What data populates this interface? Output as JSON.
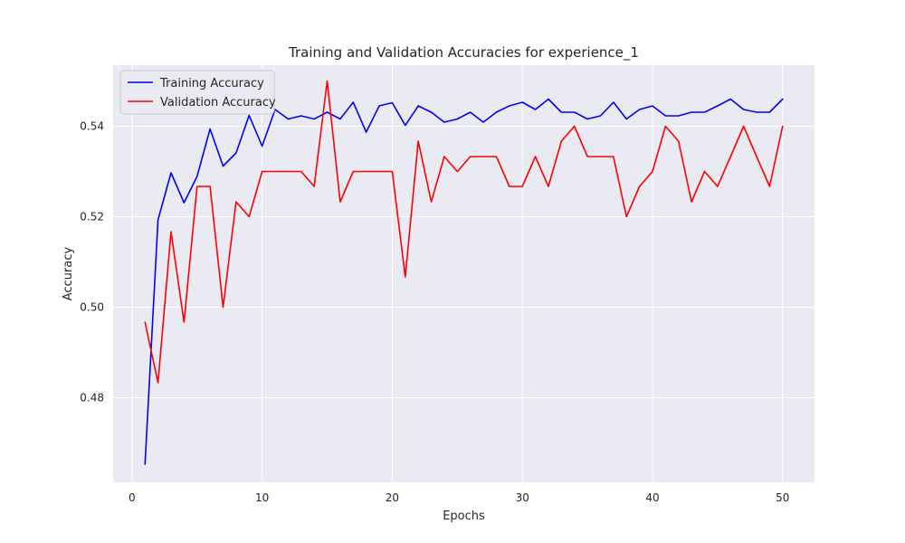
{
  "chart_data": {
    "type": "line",
    "title": "Training and Validation Accuracies for experience_1",
    "xlabel": "Epochs",
    "ylabel": "Accuracy",
    "xlim": [
      -1.45,
      52.45
    ],
    "ylim": [
      0.4613,
      0.5535
    ],
    "xticks": [
      0,
      10,
      20,
      30,
      40,
      50
    ],
    "yticks": [
      0.48,
      0.5,
      0.52,
      0.54
    ],
    "ytick_labels": [
      "0.48",
      "0.50",
      "0.52",
      "0.54"
    ],
    "grid": true,
    "legend_position": "top-left",
    "x": [
      1,
      2,
      3,
      4,
      5,
      6,
      7,
      8,
      9,
      10,
      11,
      12,
      13,
      14,
      15,
      16,
      17,
      18,
      19,
      20,
      21,
      22,
      23,
      24,
      25,
      26,
      27,
      28,
      29,
      30,
      31,
      32,
      33,
      34,
      35,
      36,
      37,
      38,
      39,
      40,
      41,
      42,
      43,
      44,
      45,
      46,
      47,
      48,
      49,
      50
    ],
    "series": [
      {
        "name": "Training Accuracy",
        "color": "#0000ff",
        "values": [
          0.4653,
          0.5193,
          0.5297,
          0.5231,
          0.5289,
          0.5394,
          0.5312,
          0.5341,
          0.5424,
          0.5356,
          0.5437,
          0.5416,
          0.5423,
          0.5416,
          0.5431,
          0.5416,
          0.5453,
          0.5387,
          0.5445,
          0.5452,
          0.5402,
          0.5445,
          0.5431,
          0.5409,
          0.5416,
          0.5431,
          0.5409,
          0.5431,
          0.5445,
          0.5453,
          0.5437,
          0.546,
          0.5431,
          0.5431,
          0.5416,
          0.5423,
          0.5453,
          0.5416,
          0.5437,
          0.5445,
          0.5423,
          0.5423,
          0.5431,
          0.5431,
          0.5445,
          0.546,
          0.5437,
          0.5431,
          0.5431,
          0.546
        ]
      },
      {
        "name": "Validation Accuracy",
        "color": "#ff0000",
        "values": [
          0.4967,
          0.4833,
          0.5167,
          0.4967,
          0.5267,
          0.5267,
          0.5,
          0.5233,
          0.52,
          0.53,
          0.53,
          0.53,
          0.53,
          0.5267,
          0.55,
          0.5233,
          0.53,
          0.53,
          0.53,
          0.53,
          0.5067,
          0.5367,
          0.5233,
          0.5333,
          0.53,
          0.5333,
          0.5333,
          0.5333,
          0.5267,
          0.5267,
          0.5333,
          0.5267,
          0.5367,
          0.54,
          0.5333,
          0.5333,
          0.5333,
          0.52,
          0.5267,
          0.53,
          0.54,
          0.5367,
          0.5233,
          0.53,
          0.5267,
          0.5333,
          0.54,
          0.5333,
          0.5267,
          0.54
        ]
      }
    ],
    "colors": {
      "plot_background": "#eaeaf2",
      "grid": "#ffffff",
      "text": "#262626"
    }
  }
}
